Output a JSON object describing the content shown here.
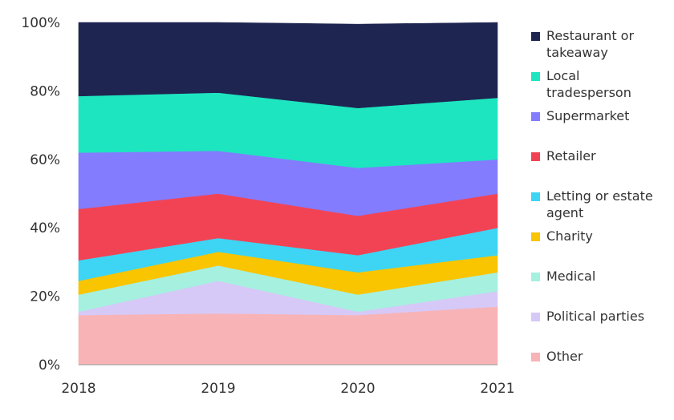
{
  "chart_data": {
    "type": "area",
    "stacked": true,
    "normalized": true,
    "x": [
      "2018",
      "2019",
      "2020",
      "2021"
    ],
    "ylim": [
      0,
      100
    ],
    "y_ticks": [
      "0%",
      "20%",
      "40%",
      "60%",
      "80%",
      "100%"
    ],
    "grid": false,
    "legend_position": "right",
    "series": [
      {
        "name": "Other",
        "color": "#F8B3B6",
        "values": [
          14.5,
          15,
          14.5,
          17
        ]
      },
      {
        "name": "Political parties",
        "color": "#D6C9F7",
        "values": [
          1,
          9.5,
          1,
          4.5
        ]
      },
      {
        "name": "Medical",
        "color": "#A6F0E0",
        "values": [
          5,
          4.5,
          5,
          5.5
        ]
      },
      {
        "name": "Charity",
        "color": "#F9C400",
        "values": [
          4,
          4,
          6.5,
          5
        ]
      },
      {
        "name": "Letting or estate agent",
        "color": "#3DD5F3",
        "values": [
          6,
          4,
          5,
          8
        ]
      },
      {
        "name": "Retailer",
        "color": "#F24355",
        "values": [
          15,
          13,
          11.5,
          10
        ]
      },
      {
        "name": "Supermarket",
        "color": "#847CFF",
        "values": [
          16.5,
          12.5,
          14,
          10
        ]
      },
      {
        "name": "Local tradesperson",
        "color": "#1DE5C0",
        "values": [
          16.5,
          17,
          17.5,
          18
        ]
      },
      {
        "name": "Restaurant or takeaway",
        "color": "#1E2550",
        "values": [
          21.5,
          20.5,
          24.5,
          22
        ]
      }
    ],
    "legend": [
      {
        "series": "Restaurant or takeaway",
        "lines": [
          "Restaurant or",
          "takeaway"
        ]
      },
      {
        "series": "Local tradesperson",
        "lines": [
          "Local",
          "tradesperson"
        ]
      },
      {
        "series": "Supermarket",
        "lines": [
          "Supermarket"
        ]
      },
      {
        "series": "Retailer",
        "lines": [
          "Retailer"
        ]
      },
      {
        "series": "Letting or estate agent",
        "lines": [
          "Letting or estate",
          "agent"
        ]
      },
      {
        "series": "Charity",
        "lines": [
          "Charity"
        ]
      },
      {
        "series": "Medical",
        "lines": [
          "Medical"
        ]
      },
      {
        "series": "Political parties",
        "lines": [
          "Political parties"
        ]
      },
      {
        "series": "Other",
        "lines": [
          "Other"
        ]
      }
    ]
  }
}
